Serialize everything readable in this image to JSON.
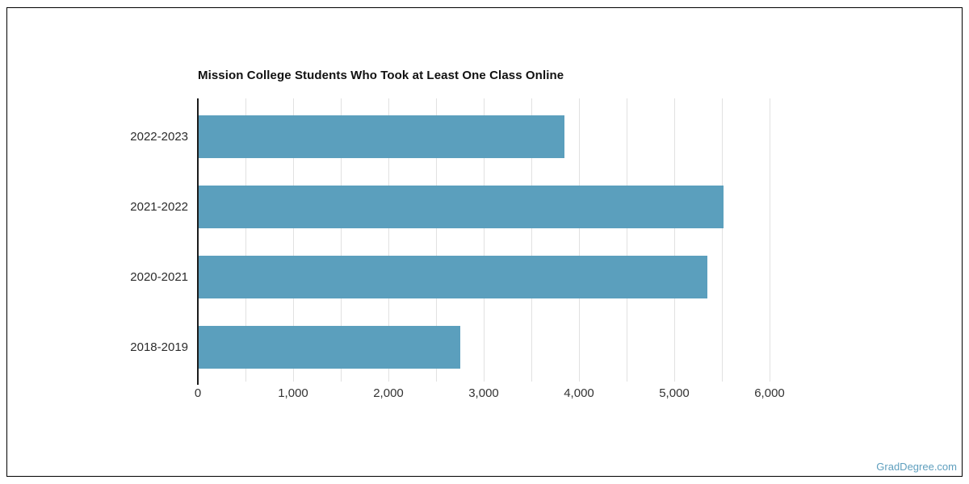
{
  "chart_data": {
    "type": "bar",
    "orientation": "horizontal",
    "title": "Mission College Students Who Took at Least One Class Online",
    "categories": [
      "2022-2023",
      "2021-2022",
      "2020-2021",
      "2018-2019"
    ],
    "values": [
      3835,
      5510,
      5340,
      2745
    ],
    "xlabel": "",
    "ylabel": "",
    "xlim": [
      0,
      6000
    ],
    "x_tick_values": [
      0,
      1000,
      2000,
      3000,
      4000,
      5000,
      6000
    ],
    "x_tick_labels": [
      "0",
      "1,000",
      "2,000",
      "3,000",
      "4,000",
      "5,000",
      "6,000"
    ],
    "gridline_step": 500,
    "grid": true,
    "legend": "none",
    "bar_color": "#5b9fbd",
    "gridline_color": "#e1e1e1",
    "axis_color": "#1b1b1b",
    "tick_label_color": "#333333",
    "category_label_color": "#2b2b2b",
    "title_color": "#111111"
  },
  "watermark": {
    "text": "GradDegree.com",
    "color": "#5f9fbe"
  }
}
